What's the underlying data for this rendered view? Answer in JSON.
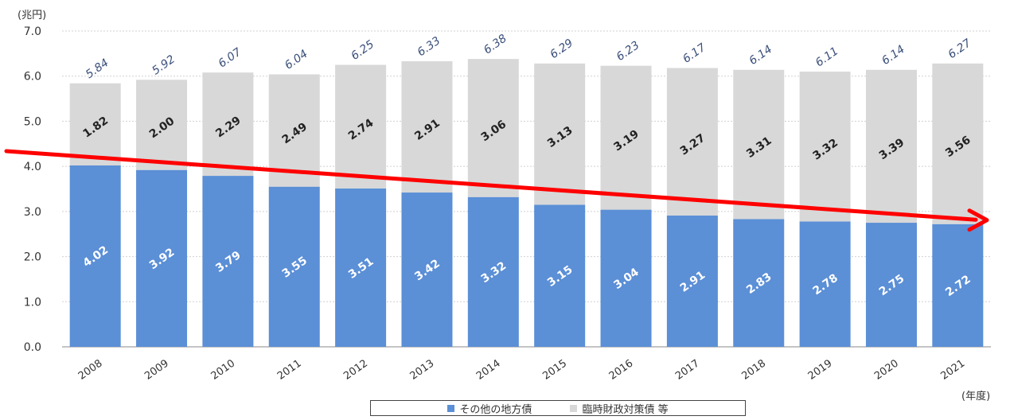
{
  "unit_label": "(兆円)",
  "year_unit_label": "(年度)",
  "colors": {
    "other_bonds": "#5b8fd6",
    "special_bonds": "#d8d8d8",
    "trend_arrow": "#ff0000",
    "total_label": "#3a4f7a"
  },
  "legend": [
    {
      "label": "その他の地方債",
      "color": "#5b8fd6"
    },
    {
      "label": "臨時財政対策債 等",
      "color": "#d8d8d8"
    }
  ],
  "trend_arrow": {
    "start_value": 4.25,
    "end_value": 2.72,
    "direction": "decreasing"
  },
  "chart_data": {
    "type": "bar",
    "stacked": true,
    "categories": [
      "2008",
      "2009",
      "2010",
      "2011",
      "2012",
      "2013",
      "2014",
      "2015",
      "2016",
      "2017",
      "2018",
      "2019",
      "2020",
      "2021"
    ],
    "series": [
      {
        "name": "その他の地方債",
        "values": [
          4.02,
          3.92,
          3.79,
          3.55,
          3.51,
          3.42,
          3.32,
          3.15,
          3.04,
          2.91,
          2.83,
          2.78,
          2.75,
          2.72
        ]
      },
      {
        "name": "臨時財政対策債 等",
        "values": [
          1.82,
          2.0,
          2.29,
          2.49,
          2.74,
          2.91,
          3.06,
          3.13,
          3.19,
          3.27,
          3.31,
          3.32,
          3.39,
          3.56
        ]
      }
    ],
    "totals": [
      5.84,
      5.92,
      6.07,
      6.04,
      6.25,
      6.33,
      6.38,
      6.29,
      6.23,
      6.17,
      6.14,
      6.11,
      6.14,
      6.27
    ],
    "y_ticks": [
      "0.0",
      "1.0",
      "2.0",
      "3.0",
      "4.0",
      "5.0",
      "6.0",
      "7.0"
    ],
    "ylim": [
      0,
      7
    ],
    "grid": true,
    "legend_position": "bottom"
  }
}
